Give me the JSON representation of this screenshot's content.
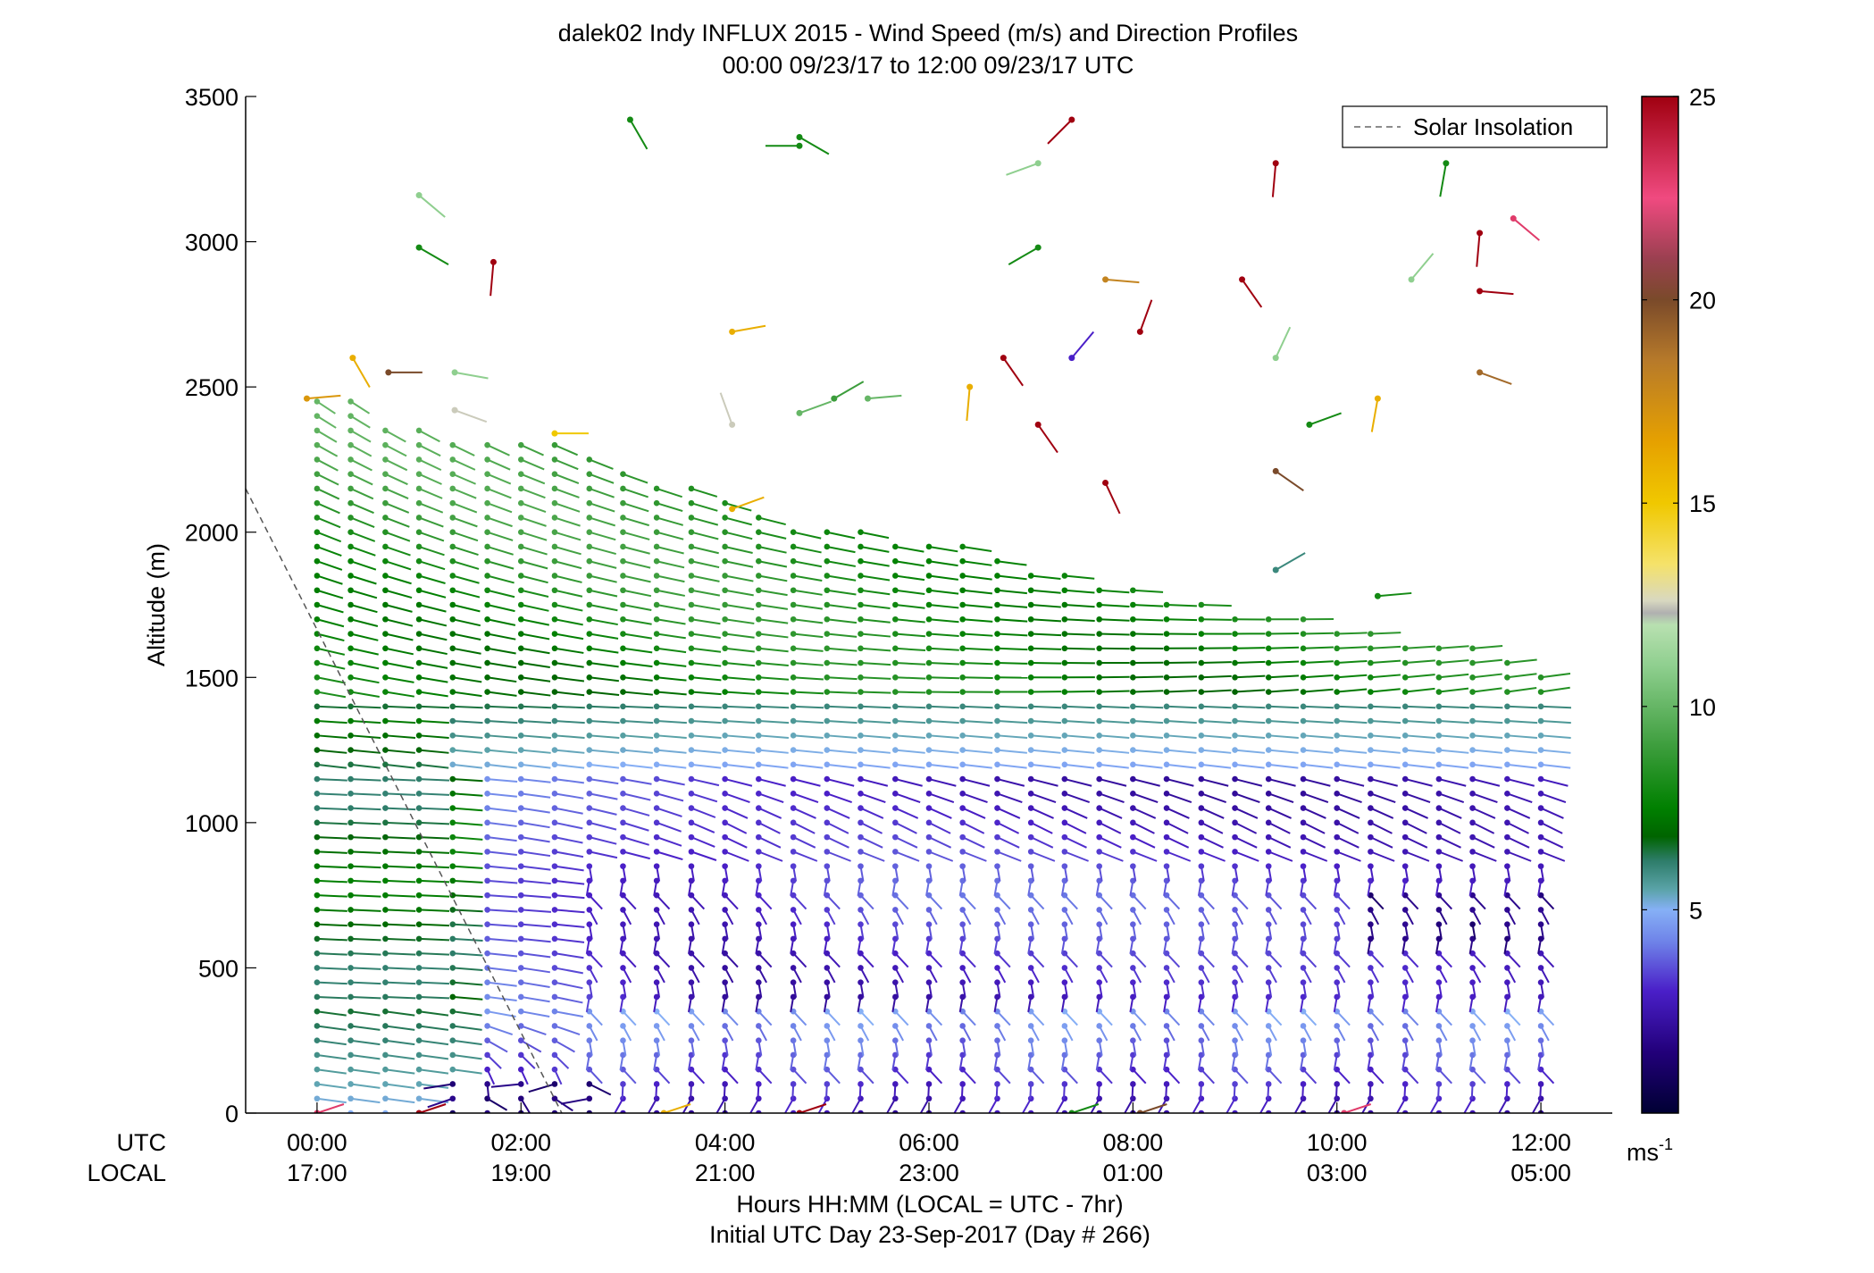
{
  "chart_data": {
    "type": "wind_profile_scatter",
    "title": "dalek02 Indy INFLUX 2015 - Wind Speed (m/s) and Direction Profiles",
    "subtitle": "00:00 09/23/17 to 12:00 09/23/17  UTC",
    "ylabel": "Altitude (m)",
    "xlabel": "Hours HH:MM  (LOCAL = UTC - 7hr)",
    "xlabel2": "Initial UTC Day 23-Sep-2017 (Day # 266)",
    "utc_row_label": "UTC",
    "local_row_label": "LOCAL",
    "xlim_hours": [
      -0.7,
      12.7
    ],
    "ylim": [
      0,
      3500
    ],
    "y_ticks": [
      0,
      500,
      1000,
      1500,
      2000,
      2500,
      3000,
      3500
    ],
    "x_ticks": [
      {
        "hour": 0,
        "utc": "00:00",
        "local": "17:00"
      },
      {
        "hour": 2,
        "utc": "02:00",
        "local": "19:00"
      },
      {
        "hour": 4,
        "utc": "04:00",
        "local": "21:00"
      },
      {
        "hour": 6,
        "utc": "06:00",
        "local": "23:00"
      },
      {
        "hour": 8,
        "utc": "08:00",
        "local": "01:00"
      },
      {
        "hour": 10,
        "utc": "10:00",
        "local": "03:00"
      },
      {
        "hour": 12,
        "utc": "12:00",
        "local": "05:00"
      }
    ],
    "legend": {
      "label": "Solar Insolation",
      "placement": "top-right",
      "style": "dashed"
    },
    "solar_insolation_line": [
      {
        "hour": -0.7,
        "alt": 2150
      },
      {
        "hour": 2.4,
        "alt": 0
      }
    ],
    "colorbar": {
      "unit": "ms",
      "unit_exponent": "-1",
      "range": [
        0,
        25
      ],
      "ticks": [
        5,
        10,
        15,
        20,
        25
      ],
      "stops": [
        {
          "v": 0,
          "c": "#000033"
        },
        {
          "v": 1.5,
          "c": "#22007a"
        },
        {
          "v": 3,
          "c": "#4a1fc8"
        },
        {
          "v": 4.2,
          "c": "#6e82e8"
        },
        {
          "v": 5,
          "c": "#86b0f6"
        },
        {
          "v": 5.5,
          "c": "#5aa3a8"
        },
        {
          "v": 6.2,
          "c": "#2e7d6a"
        },
        {
          "v": 6.8,
          "c": "#006400"
        },
        {
          "v": 7.5,
          "c": "#008000"
        },
        {
          "v": 9,
          "c": "#3c9d3c"
        },
        {
          "v": 11,
          "c": "#8fcf8f"
        },
        {
          "v": 12,
          "c": "#b8e0b0"
        },
        {
          "v": 12.3,
          "c": "#b0b0b0"
        },
        {
          "v": 12.6,
          "c": "#d8d8c0"
        },
        {
          "v": 13.5,
          "c": "#f5e26a"
        },
        {
          "v": 15,
          "c": "#f0c800"
        },
        {
          "v": 16.5,
          "c": "#e6a100"
        },
        {
          "v": 18.5,
          "c": "#b77a2a"
        },
        {
          "v": 20,
          "c": "#7a4a2a"
        },
        {
          "v": 21,
          "c": "#9a4050"
        },
        {
          "v": 22.5,
          "c": "#f04a80"
        },
        {
          "v": 25,
          "c": "#a00010"
        }
      ]
    },
    "profile_times_hours": [
      0,
      0.33,
      0.67,
      1,
      1.33,
      1.67,
      2,
      2.33,
      2.67,
      3,
      3.33,
      3.67,
      4,
      4.33,
      4.67,
      5,
      5.33,
      5.67,
      6,
      6.33,
      6.67,
      7,
      7.33,
      7.67,
      8,
      8.33,
      8.67,
      9,
      9.33,
      9.67,
      10,
      10.33,
      10.67,
      11,
      11.33,
      11.67,
      12
    ],
    "altitude_step_m": 50,
    "profile_top_altitude_m": [
      2450,
      2450,
      2350,
      2350,
      2300,
      2300,
      2300,
      2300,
      2250,
      2200,
      2150,
      2150,
      2100,
      2050,
      2000,
      2000,
      2000,
      1950,
      1950,
      1950,
      1900,
      1850,
      1850,
      1800,
      1800,
      1750,
      1750,
      1700,
      1700,
      1700,
      1650,
      1650,
      1600,
      1600,
      1600,
      1550,
      1500
    ],
    "scattered_points": [
      {
        "hour": -0.1,
        "alt": 2460,
        "speed": 17,
        "dir": 275
      },
      {
        "hour": 0.35,
        "alt": 2600,
        "speed": 16,
        "dir": 210
      },
      {
        "hour": 0.7,
        "alt": 2550,
        "speed": 20,
        "dir": 270
      },
      {
        "hour": 1.0,
        "alt": 3160,
        "speed": 11,
        "dir": 230
      },
      {
        "hour": 1.0,
        "alt": 2980,
        "speed": 8,
        "dir": 240
      },
      {
        "hour": 1.35,
        "alt": 2550,
        "speed": 11,
        "dir": 260
      },
      {
        "hour": 1.35,
        "alt": 2420,
        "speed": 12.5,
        "dir": 250
      },
      {
        "hour": 1.73,
        "alt": 2930,
        "speed": 25,
        "dir": 175
      },
      {
        "hour": 2.33,
        "alt": 2340,
        "speed": 15,
        "dir": 270
      },
      {
        "hour": 3.07,
        "alt": 3420,
        "speed": 8,
        "dir": 210
      },
      {
        "hour": 4.07,
        "alt": 2690,
        "speed": 16,
        "dir": 280
      },
      {
        "hour": 4.07,
        "alt": 2370,
        "speed": 12.5,
        "dir": 20
      },
      {
        "hour": 4.07,
        "alt": 2080,
        "speed": 16,
        "dir": 290
      },
      {
        "hour": 4.73,
        "alt": 3360,
        "speed": 8,
        "dir": 240
      },
      {
        "hour": 4.73,
        "alt": 3330,
        "speed": 8,
        "dir": 90
      },
      {
        "hour": 4.73,
        "alt": 2410,
        "speed": 10,
        "dir": 290
      },
      {
        "hour": 5.07,
        "alt": 2460,
        "speed": 9,
        "dir": 300
      },
      {
        "hour": 5.4,
        "alt": 2460,
        "speed": 10,
        "dir": 275
      },
      {
        "hour": 6.4,
        "alt": 2500,
        "speed": 16,
        "dir": 175
      },
      {
        "hour": 6.73,
        "alt": 2600,
        "speed": 25,
        "dir": 215
      },
      {
        "hour": 7.07,
        "alt": 3270,
        "speed": 11,
        "dir": 110
      },
      {
        "hour": 7.07,
        "alt": 2980,
        "speed": 8,
        "dir": 120
      },
      {
        "hour": 7.07,
        "alt": 2370,
        "speed": 25,
        "dir": 215
      },
      {
        "hour": 7.4,
        "alt": 3420,
        "speed": 25,
        "dir": 135
      },
      {
        "hour": 7.4,
        "alt": 2600,
        "speed": 3,
        "dir": 320
      },
      {
        "hour": 7.73,
        "alt": 2870,
        "speed": 18,
        "dir": 265
      },
      {
        "hour": 7.73,
        "alt": 2170,
        "speed": 25,
        "dir": 205
      },
      {
        "hour": 8.07,
        "alt": 2690,
        "speed": 25,
        "dir": 340
      },
      {
        "hour": 9.07,
        "alt": 2870,
        "speed": 25,
        "dir": 215
      },
      {
        "hour": 9.4,
        "alt": 3270,
        "speed": 25,
        "dir": 175
      },
      {
        "hour": 9.4,
        "alt": 2600,
        "speed": 11,
        "dir": 335
      },
      {
        "hour": 9.4,
        "alt": 2210,
        "speed": 20,
        "dir": 235
      },
      {
        "hour": 9.4,
        "alt": 1870,
        "speed": 6,
        "dir": 300
      },
      {
        "hour": 9.73,
        "alt": 2370,
        "speed": 8,
        "dir": 290
      },
      {
        "hour": 10.4,
        "alt": 1780,
        "speed": 8,
        "dir": 275
      },
      {
        "hour": 10.4,
        "alt": 2460,
        "speed": 16,
        "dir": 170
      },
      {
        "hour": 10.73,
        "alt": 2870,
        "speed": 11,
        "dir": 320
      },
      {
        "hour": 11.07,
        "alt": 3270,
        "speed": 8,
        "dir": 170
      },
      {
        "hour": 11.4,
        "alt": 3030,
        "speed": 25,
        "dir": 175
      },
      {
        "hour": 11.4,
        "alt": 2830,
        "speed": 25,
        "dir": 265
      },
      {
        "hour": 11.4,
        "alt": 2550,
        "speed": 19,
        "dir": 250
      },
      {
        "hour": 11.73,
        "alt": 3080,
        "speed": 23,
        "dir": 230
      }
    ],
    "surface_points": [
      {
        "hour": 0,
        "speed": 23
      },
      {
        "hour": 1.0,
        "speed": 25
      },
      {
        "hour": 3.4,
        "speed": 16
      },
      {
        "hour": 4.73,
        "speed": 25
      },
      {
        "hour": 7.4,
        "speed": 8
      },
      {
        "hour": 8.07,
        "speed": 20
      },
      {
        "hour": 10.07,
        "speed": 23
      }
    ]
  }
}
